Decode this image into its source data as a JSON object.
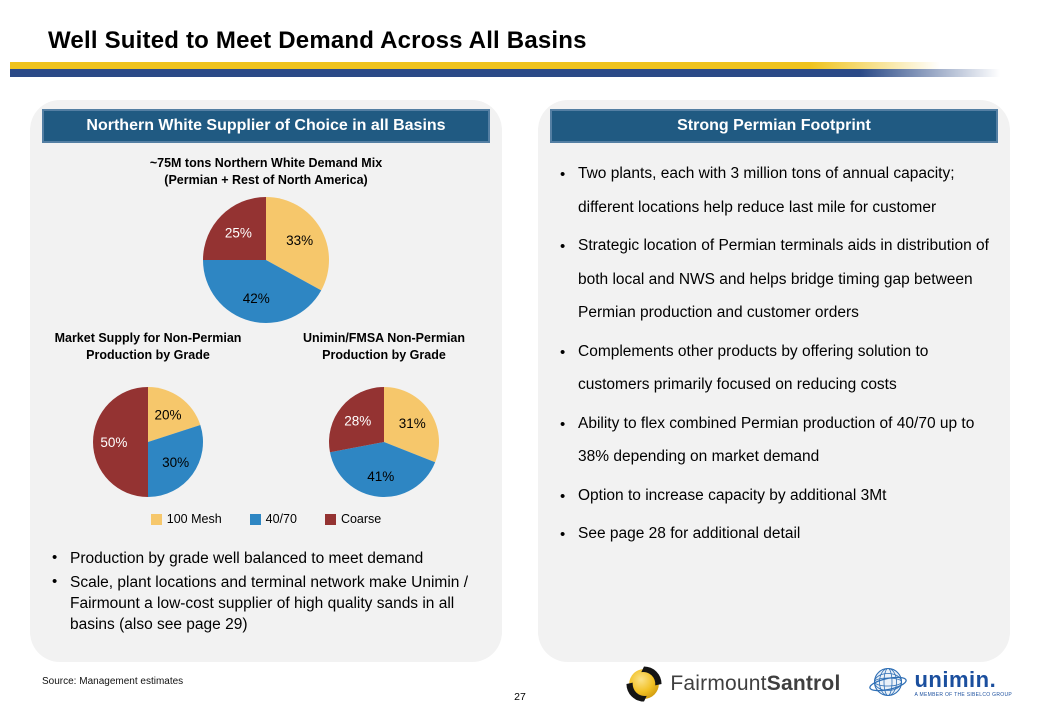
{
  "slide": {
    "title": "Well Suited to Meet Demand Across All Basins",
    "page_number": "27",
    "source_note": "Source: Management estimates"
  },
  "left_panel": {
    "header": "Northern White Supplier of Choice in all Basins",
    "bullets": [
      "Production by grade well balanced to meet demand",
      "Scale, plant locations and terminal network make Unimin / Fairmount a low-cost supplier of high quality sands in all basins (also see page 29)"
    ]
  },
  "right_panel": {
    "header": "Strong Permian Footprint",
    "bullets": [
      "Two plants, each with 3 million tons of annual capacity; different locations help reduce last mile for customer",
      "Strategic location of Permian terminals aids in distribution of both local and NWS and helps bridge timing gap between Permian production and customer orders",
      "Complements other products by offering solution to customers primarily focused on reducing costs",
      "Ability to flex combined Permian production of 40/70 up to 38% depending on market demand",
      "Option to increase capacity by additional 3Mt",
      "See page 28 for additional detail"
    ]
  },
  "chart_data": [
    {
      "type": "pie",
      "title": "~75M tons Northern White Demand Mix",
      "subtitle": "(Permian + Rest of North America)",
      "labels": [
        "100 Mesh",
        "40/70",
        "Coarse"
      ],
      "values": [
        33,
        42,
        25
      ],
      "colors": [
        "#F6C76B",
        "#2E86C3",
        "#943332"
      ],
      "label_colors": [
        "#000000",
        "#000000",
        "#FFFFFF"
      ],
      "start_angle_deg": 0,
      "direction": "clockwise"
    },
    {
      "type": "pie",
      "title": "Market Supply for Non-Permian Production by Grade",
      "labels": [
        "100 Mesh",
        "40/70",
        "Coarse"
      ],
      "values": [
        20,
        30,
        50
      ],
      "colors": [
        "#F6C76B",
        "#2E86C3",
        "#943332"
      ],
      "label_colors": [
        "#000000",
        "#000000",
        "#FFFFFF"
      ],
      "start_angle_deg": 0,
      "direction": "clockwise"
    },
    {
      "type": "pie",
      "title": "Unimin/FMSA Non-Permian Production by Grade",
      "labels": [
        "100 Mesh",
        "40/70",
        "Coarse"
      ],
      "values": [
        31,
        41,
        28
      ],
      "colors": [
        "#F6C76B",
        "#2E86C3",
        "#943332"
      ],
      "label_colors": [
        "#000000",
        "#000000",
        "#FFFFFF"
      ],
      "start_angle_deg": 0,
      "direction": "clockwise"
    }
  ],
  "legend": [
    {
      "label": "100 Mesh",
      "color": "#F6C76B"
    },
    {
      "label": "40/70",
      "color": "#2E86C3"
    },
    {
      "label": "Coarse",
      "color": "#943332"
    }
  ],
  "footer": {
    "fairmount": {
      "name_regular": "Fairmount",
      "name_bold": "Santrol"
    },
    "unimin": {
      "wordmark": "unimin.",
      "tagline": "A MEMBER OF THE SIBELCO GROUP"
    }
  }
}
